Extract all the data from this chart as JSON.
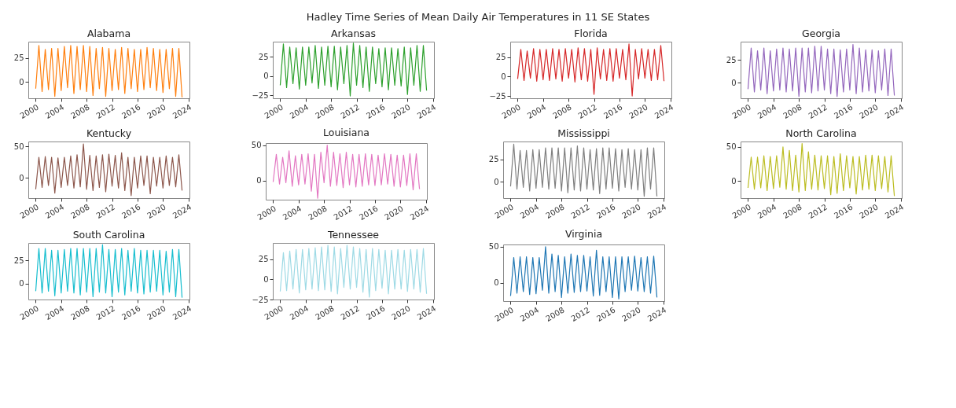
{
  "chart_data": [
    {
      "type": "line",
      "title": "Alabama",
      "annotations": [
        "Hadley Time Series of Mean Daily Air Temperatures in 11 SE States"
      ],
      "x": [
        "2000-01",
        "2000-07",
        "2001-01",
        "2001-07",
        "2002-01",
        "2002-07",
        "2003-01",
        "2003-07",
        "2004-01",
        "2004-07",
        "2005-01",
        "2005-07",
        "2006-01",
        "2006-07",
        "2007-01",
        "2007-07",
        "2008-01",
        "2008-07",
        "2009-01",
        "2009-07",
        "2010-01",
        "2010-07",
        "2011-01",
        "2011-07",
        "2012-01",
        "2012-07",
        "2013-01",
        "2013-07",
        "2014-01",
        "2014-07",
        "2015-01",
        "2015-07",
        "2016-01",
        "2016-07",
        "2017-01",
        "2017-07",
        "2018-01",
        "2018-07",
        "2019-01",
        "2019-07",
        "2020-01",
        "2020-07",
        "2021-01",
        "2021-07",
        "2022-01",
        "2022-07",
        "2023-01"
      ],
      "series": [
        {
          "color": "#ff7f0e",
          "values": [
            -7,
            38,
            -10,
            34,
            -8,
            35,
            -15,
            35,
            -9,
            37,
            -6,
            38,
            -12,
            37,
            -8,
            38,
            -10,
            37,
            -14,
            35,
            -7,
            36,
            -15,
            35,
            -9,
            34,
            -8,
            36,
            -12,
            35,
            -7,
            34,
            -10,
            34,
            -8,
            36,
            -6,
            35,
            -9,
            34,
            -11,
            34,
            -7,
            35,
            -15,
            35,
            -16
          ]
        }
      ],
      "xlim": [
        "1998-11",
        "2024-03"
      ],
      "xticks": [
        "2000",
        "2004",
        "2008",
        "2012",
        "2016",
        "2020",
        "2024"
      ],
      "ylim": [
        -17,
        42
      ],
      "yticks": [
        0,
        25
      ]
    },
    {
      "type": "line",
      "title": "Arkansas",
      "x": [
        "2000-01",
        "2000-07",
        "2001-01",
        "2001-07",
        "2002-01",
        "2002-07",
        "2003-01",
        "2003-07",
        "2004-01",
        "2004-07",
        "2005-01",
        "2005-07",
        "2006-01",
        "2006-07",
        "2007-01",
        "2007-07",
        "2008-01",
        "2008-07",
        "2009-01",
        "2009-07",
        "2010-01",
        "2010-07",
        "2011-01",
        "2011-07",
        "2012-01",
        "2012-07",
        "2013-01",
        "2013-07",
        "2014-01",
        "2014-07",
        "2015-01",
        "2015-07",
        "2016-01",
        "2016-07",
        "2017-01",
        "2017-07",
        "2018-01",
        "2018-07",
        "2019-01",
        "2019-07",
        "2020-01",
        "2020-07",
        "2021-01",
        "2021-07",
        "2022-01",
        "2022-07",
        "2023-01"
      ],
      "series": [
        {
          "color": "#2ca02c",
          "values": [
            -12,
            42,
            -15,
            38,
            -10,
            37,
            -17,
            38,
            -12,
            38,
            -9,
            40,
            -16,
            38,
            -12,
            39,
            -14,
            39,
            -18,
            38,
            -10,
            40,
            -26,
            43,
            -12,
            40,
            -15,
            38,
            -20,
            38,
            -10,
            36,
            -14,
            37,
            -18,
            37,
            -12,
            36,
            -13,
            38,
            -24,
            37,
            -12,
            40,
            -20,
            40,
            -19
          ]
        }
      ],
      "xlim": [
        "1998-11",
        "2024-03"
      ],
      "xticks": [
        "2000",
        "2004",
        "2008",
        "2012",
        "2016",
        "2020",
        "2024"
      ],
      "ylim": [
        -29,
        45
      ],
      "yticks": [
        -25,
        0,
        25
      ]
    },
    {
      "type": "line",
      "title": "Florida",
      "x": [
        "2000-01",
        "2000-07",
        "2001-01",
        "2001-07",
        "2002-01",
        "2002-07",
        "2003-01",
        "2003-07",
        "2004-01",
        "2004-07",
        "2005-01",
        "2005-07",
        "2006-01",
        "2006-07",
        "2007-01",
        "2007-07",
        "2008-01",
        "2008-07",
        "2009-01",
        "2009-07",
        "2010-01",
        "2010-07",
        "2011-01",
        "2011-07",
        "2012-01",
        "2012-07",
        "2013-01",
        "2013-07",
        "2014-01",
        "2014-07",
        "2015-01",
        "2015-07",
        "2016-01",
        "2016-07",
        "2017-01",
        "2017-07",
        "2018-01",
        "2018-07",
        "2019-01",
        "2019-07",
        "2020-01",
        "2020-07",
        "2021-01",
        "2021-07",
        "2022-01",
        "2022-07",
        "2023-01"
      ],
      "series": [
        {
          "color": "#d62728",
          "values": [
            -3,
            35,
            -5,
            33,
            -2,
            36,
            -6,
            35,
            -4,
            35,
            -5,
            36,
            -3,
            35,
            -6,
            36,
            -2,
            35,
            -7,
            37,
            -4,
            36,
            -6,
            35,
            -23,
            37,
            -3,
            35,
            -5,
            36,
            -6,
            36,
            -2,
            35,
            -4,
            42,
            -25,
            35,
            -3,
            36,
            -2,
            35,
            -5,
            35,
            -4,
            40,
            -6
          ]
        }
      ],
      "xlim": [
        "1998-11",
        "2024-03"
      ],
      "xticks": [
        "2000",
        "2004",
        "2008",
        "2012",
        "2016",
        "2020",
        "2024"
      ],
      "ylim": [
        -28,
        45
      ],
      "yticks": [
        -25,
        0,
        25
      ]
    },
    {
      "type": "line",
      "title": "Georgia",
      "x": [
        "2000-01",
        "2000-07",
        "2001-01",
        "2001-07",
        "2002-01",
        "2002-07",
        "2003-01",
        "2003-07",
        "2004-01",
        "2004-07",
        "2005-01",
        "2005-07",
        "2006-01",
        "2006-07",
        "2007-01",
        "2007-07",
        "2008-01",
        "2008-07",
        "2009-01",
        "2009-07",
        "2010-01",
        "2010-07",
        "2011-01",
        "2011-07",
        "2012-01",
        "2012-07",
        "2013-01",
        "2013-07",
        "2014-01",
        "2014-07",
        "2015-01",
        "2015-07",
        "2016-01",
        "2016-07",
        "2017-01",
        "2017-07",
        "2018-01",
        "2018-07",
        "2019-01",
        "2019-07",
        "2020-01",
        "2020-07",
        "2021-01",
        "2021-07",
        "2022-01",
        "2022-07",
        "2023-01"
      ],
      "series": [
        {
          "color": "#9467bd",
          "values": [
            -7,
            38,
            -10,
            35,
            -8,
            38,
            -12,
            35,
            -9,
            37,
            -8,
            38,
            -10,
            37,
            -9,
            38,
            -15,
            38,
            -10,
            38,
            -11,
            40,
            -9,
            40,
            -8,
            37,
            -12,
            37,
            -15,
            36,
            -10,
            37,
            -8,
            42,
            -12,
            38,
            -10,
            36,
            -9,
            36,
            -11,
            35,
            -8,
            37,
            -14,
            37,
            -14
          ]
        }
      ],
      "xlim": [
        "1998-11",
        "2024-03"
      ],
      "xticks": [
        "2000",
        "2004",
        "2008",
        "2012",
        "2016",
        "2020",
        "2024"
      ],
      "ylim": [
        -17,
        45
      ],
      "yticks": [
        0,
        25
      ]
    },
    {
      "type": "line",
      "title": "Kentucky",
      "x": [
        "2000-01",
        "2000-07",
        "2001-01",
        "2001-07",
        "2002-01",
        "2002-07",
        "2003-01",
        "2003-07",
        "2004-01",
        "2004-07",
        "2005-01",
        "2005-07",
        "2006-01",
        "2006-07",
        "2007-01",
        "2007-07",
        "2008-01",
        "2008-07",
        "2009-01",
        "2009-07",
        "2010-01",
        "2010-07",
        "2011-01",
        "2011-07",
        "2012-01",
        "2012-07",
        "2013-01",
        "2013-07",
        "2014-01",
        "2014-07",
        "2015-01",
        "2015-07",
        "2016-01",
        "2016-07",
        "2017-01",
        "2017-07",
        "2018-01",
        "2018-07",
        "2019-01",
        "2019-07",
        "2020-01",
        "2020-07",
        "2021-01",
        "2021-07",
        "2022-01",
        "2022-07",
        "2023-01"
      ],
      "series": [
        {
          "color": "#8c564b",
          "values": [
            -18,
            33,
            -15,
            34,
            -12,
            33,
            -24,
            32,
            -15,
            33,
            -12,
            35,
            -16,
            37,
            -14,
            54,
            -18,
            36,
            -20,
            35,
            -15,
            37,
            -22,
            38,
            -13,
            36,
            -16,
            40,
            -20,
            33,
            -28,
            33,
            -16,
            35,
            -12,
            35,
            -25,
            33,
            -13,
            33,
            -16,
            35,
            -12,
            33,
            -14,
            37,
            -20
          ]
        }
      ],
      "xlim": [
        "1998-11",
        "2024-03"
      ],
      "xticks": [
        "2000",
        "2004",
        "2008",
        "2012",
        "2016",
        "2020",
        "2024"
      ],
      "ylim": [
        -32,
        58
      ],
      "yticks": [
        0,
        50
      ]
    },
    {
      "type": "line",
      "title": "Louisiana",
      "x": [
        "2000-01",
        "2000-07",
        "2001-01",
        "2001-07",
        "2002-01",
        "2002-07",
        "2003-01",
        "2003-07",
        "2004-01",
        "2004-07",
        "2005-01",
        "2005-07",
        "2006-01",
        "2006-07",
        "2007-01",
        "2007-07",
        "2008-01",
        "2008-07",
        "2009-01",
        "2009-07",
        "2010-01",
        "2010-07",
        "2011-01",
        "2011-07",
        "2012-01",
        "2012-07",
        "2013-01",
        "2013-07",
        "2014-01",
        "2014-07",
        "2015-01",
        "2015-07",
        "2016-01",
        "2016-07",
        "2017-01",
        "2017-07",
        "2018-01",
        "2018-07",
        "2019-01",
        "2019-07",
        "2020-01",
        "2020-07",
        "2021-01",
        "2021-07",
        "2022-01",
        "2022-07",
        "2023-01"
      ],
      "series": [
        {
          "color": "#e377c2",
          "values": [
            -2,
            37,
            -5,
            33,
            -3,
            42,
            -8,
            35,
            -6,
            37,
            -5,
            38,
            -15,
            37,
            -25,
            40,
            -3,
            50,
            -8,
            40,
            -7,
            38,
            -10,
            40,
            -6,
            37,
            -9,
            37,
            -8,
            38,
            -6,
            37,
            -7,
            36,
            -6,
            38,
            -5,
            37,
            -8,
            36,
            -9,
            36,
            -7,
            38,
            -13,
            38,
            -12
          ]
        }
      ],
      "xlim": [
        "1998-11",
        "2024-03"
      ],
      "xticks": [
        "2000",
        "2004",
        "2008",
        "2012",
        "2016",
        "2020",
        "2024"
      ],
      "ylim": [
        -27,
        53
      ],
      "yticks": [
        0,
        50
      ]
    },
    {
      "type": "line",
      "title": "Mississippi",
      "x": [
        "2000-01",
        "2000-07",
        "2001-01",
        "2001-07",
        "2002-01",
        "2002-07",
        "2003-01",
        "2003-07",
        "2004-01",
        "2004-07",
        "2005-01",
        "2005-07",
        "2006-01",
        "2006-07",
        "2007-01",
        "2007-07",
        "2008-01",
        "2008-07",
        "2009-01",
        "2009-07",
        "2010-01",
        "2010-07",
        "2011-01",
        "2011-07",
        "2012-01",
        "2012-07",
        "2013-01",
        "2013-07",
        "2014-01",
        "2014-07",
        "2015-01",
        "2015-07",
        "2016-01",
        "2016-07",
        "2017-01",
        "2017-07",
        "2018-01",
        "2018-07",
        "2019-01",
        "2019-07",
        "2020-01",
        "2020-07",
        "2021-01",
        "2021-07",
        "2022-01",
        "2022-07",
        "2023-01"
      ],
      "series": [
        {
          "color": "#7f7f7f",
          "values": [
            -5,
            42,
            -8,
            35,
            -6,
            35,
            -10,
            36,
            -7,
            36,
            -6,
            38,
            -8,
            38,
            -7,
            38,
            -10,
            38,
            -12,
            38,
            -9,
            40,
            -10,
            38,
            -8,
            36,
            -9,
            37,
            -13,
            38,
            -8,
            38,
            -7,
            37,
            -10,
            36,
            -6,
            37,
            -8,
            36,
            -9,
            36,
            -16,
            38,
            -8,
            38,
            -16
          ]
        }
      ],
      "xlim": [
        "1998-11",
        "2024-03"
      ],
      "xticks": [
        "2000",
        "2004",
        "2008",
        "2012",
        "2016",
        "2020",
        "2024"
      ],
      "ylim": [
        -18,
        45
      ],
      "yticks": [
        0,
        25
      ]
    },
    {
      "type": "line",
      "title": "North Carolina",
      "x": [
        "2000-01",
        "2000-07",
        "2001-01",
        "2001-07",
        "2002-01",
        "2002-07",
        "2003-01",
        "2003-07",
        "2004-01",
        "2004-07",
        "2005-01",
        "2005-07",
        "2006-01",
        "2006-07",
        "2007-01",
        "2007-07",
        "2008-01",
        "2008-07",
        "2009-01",
        "2009-07",
        "2010-01",
        "2010-07",
        "2011-01",
        "2011-07",
        "2012-01",
        "2012-07",
        "2013-01",
        "2013-07",
        "2014-01",
        "2014-07",
        "2015-01",
        "2015-07",
        "2016-01",
        "2016-07",
        "2017-01",
        "2017-07",
        "2018-01",
        "2018-07",
        "2019-01",
        "2019-07",
        "2020-01",
        "2020-07",
        "2021-01",
        "2021-07",
        "2022-01",
        "2022-07",
        "2023-01"
      ],
      "series": [
        {
          "color": "#bcbd22",
          "values": [
            -10,
            35,
            -12,
            35,
            -10,
            37,
            -14,
            36,
            -11,
            37,
            -9,
            50,
            -12,
            45,
            -14,
            38,
            -16,
            55,
            -14,
            43,
            -12,
            38,
            -13,
            37,
            -11,
            37,
            -20,
            36,
            -18,
            40,
            -14,
            37,
            -10,
            36,
            -19,
            36,
            -13,
            38,
            -12,
            38,
            -14,
            37,
            -11,
            36,
            -16,
            37,
            -22
          ]
        }
      ],
      "xlim": [
        "1998-11",
        "2024-03"
      ],
      "xticks": [
        "2000",
        "2004",
        "2008",
        "2012",
        "2016",
        "2020",
        "2024"
      ],
      "ylim": [
        -25,
        58
      ],
      "yticks": [
        0,
        50
      ]
    },
    {
      "type": "line",
      "title": "South Carolina",
      "x": [
        "2000-01",
        "2000-07",
        "2001-01",
        "2001-07",
        "2002-01",
        "2002-07",
        "2003-01",
        "2003-07",
        "2004-01",
        "2004-07",
        "2005-01",
        "2005-07",
        "2006-01",
        "2006-07",
        "2007-01",
        "2007-07",
        "2008-01",
        "2008-07",
        "2009-01",
        "2009-07",
        "2010-01",
        "2010-07",
        "2011-01",
        "2011-07",
        "2012-01",
        "2012-07",
        "2013-01",
        "2013-07",
        "2014-01",
        "2014-07",
        "2015-01",
        "2015-07",
        "2016-01",
        "2016-07",
        "2017-01",
        "2017-07",
        "2018-01",
        "2018-07",
        "2019-01",
        "2019-07",
        "2020-01",
        "2020-07",
        "2021-01",
        "2021-07",
        "2022-01",
        "2022-07",
        "2023-01"
      ],
      "series": [
        {
          "color": "#17becf",
          "values": [
            -8,
            38,
            -10,
            38,
            -8,
            36,
            -13,
            36,
            -10,
            37,
            -8,
            38,
            -10,
            38,
            -12,
            38,
            -9,
            38,
            -14,
            38,
            -9,
            42,
            -10,
            37,
            -14,
            37,
            -9,
            38,
            -12,
            36,
            -8,
            38,
            -10,
            36,
            -11,
            36,
            -9,
            36,
            -8,
            36,
            -12,
            35,
            -9,
            37,
            -14,
            37,
            -15
          ]
        }
      ],
      "xlim": [
        "1998-11",
        "2024-03"
      ],
      "xticks": [
        "2000",
        "2004",
        "2008",
        "2012",
        "2016",
        "2020",
        "2024"
      ],
      "ylim": [
        -17,
        44
      ],
      "yticks": [
        0,
        25
      ]
    },
    {
      "type": "line",
      "title": "Tennessee",
      "x": [
        "2000-01",
        "2000-07",
        "2001-01",
        "2001-07",
        "2002-01",
        "2002-07",
        "2003-01",
        "2003-07",
        "2004-01",
        "2004-07",
        "2005-01",
        "2005-07",
        "2006-01",
        "2006-07",
        "2007-01",
        "2007-07",
        "2008-01",
        "2008-07",
        "2009-01",
        "2009-07",
        "2010-01",
        "2010-07",
        "2011-01",
        "2011-07",
        "2012-01",
        "2012-07",
        "2013-01",
        "2013-07",
        "2014-01",
        "2014-07",
        "2015-01",
        "2015-07",
        "2016-01",
        "2016-07",
        "2017-01",
        "2017-07",
        "2018-01",
        "2018-07",
        "2019-01",
        "2019-07",
        "2020-01",
        "2020-07",
        "2021-01",
        "2021-07",
        "2022-01",
        "2022-07",
        "2023-01"
      ],
      "series": [
        {
          "color": "#9edae5",
          "values": [
            -15,
            33,
            -14,
            35,
            -12,
            37,
            -17,
            37,
            -13,
            38,
            -12,
            39,
            -14,
            40,
            -13,
            42,
            -15,
            40,
            -18,
            38,
            -10,
            42,
            -12,
            40,
            -10,
            38,
            -16,
            37,
            -22,
            38,
            -14,
            37,
            -11,
            36,
            -18,
            36,
            -12,
            37,
            -12,
            36,
            -15,
            37,
            -12,
            37,
            -16,
            38,
            -18
          ]
        }
      ],
      "xlim": [
        "1998-11",
        "2024-03"
      ],
      "xticks": [
        "2000",
        "2004",
        "2008",
        "2012",
        "2016",
        "2020",
        "2024"
      ],
      "ylim": [
        -25,
        45
      ],
      "yticks": [
        -25,
        0,
        25
      ]
    },
    {
      "type": "line",
      "title": "Virginia",
      "x": [
        "2000-01",
        "2000-07",
        "2001-01",
        "2001-07",
        "2002-01",
        "2002-07",
        "2003-01",
        "2003-07",
        "2004-01",
        "2004-07",
        "2005-01",
        "2005-07",
        "2006-01",
        "2006-07",
        "2007-01",
        "2007-07",
        "2008-01",
        "2008-07",
        "2009-01",
        "2009-07",
        "2010-01",
        "2010-07",
        "2011-01",
        "2011-07",
        "2012-01",
        "2012-07",
        "2013-01",
        "2013-07",
        "2014-01",
        "2014-07",
        "2015-01",
        "2015-07",
        "2016-01",
        "2016-07",
        "2017-01",
        "2017-07",
        "2018-01",
        "2018-07",
        "2019-01",
        "2019-07",
        "2020-01",
        "2020-07",
        "2021-01",
        "2021-07",
        "2022-01",
        "2022-07",
        "2023-01"
      ],
      "series": [
        {
          "color": "#1f77b4",
          "values": [
            -18,
            35,
            -14,
            36,
            -12,
            36,
            -16,
            35,
            -15,
            35,
            -10,
            50,
            -14,
            40,
            -12,
            38,
            -20,
            36,
            -14,
            40,
            -13,
            38,
            -12,
            38,
            -11,
            36,
            -18,
            45,
            -17,
            36,
            -12,
            36,
            -20,
            36,
            -22,
            36,
            -12,
            36,
            -10,
            37,
            -11,
            35,
            -12,
            36,
            -14,
            37,
            -20
          ]
        }
      ],
      "xlim": [
        "1998-11",
        "2024-03"
      ],
      "xticks": [
        "2000",
        "2004",
        "2008",
        "2012",
        "2016",
        "2020",
        "2024"
      ],
      "ylim": [
        -25,
        53
      ],
      "yticks": [
        0,
        50
      ]
    }
  ]
}
